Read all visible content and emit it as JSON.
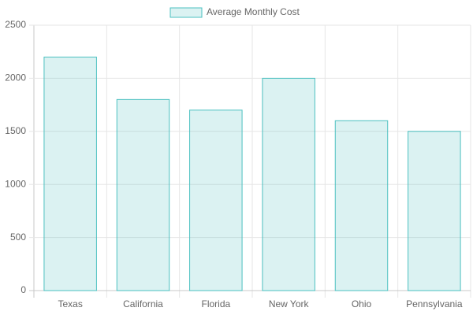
{
  "chart_data": {
    "type": "bar",
    "categories": [
      "Texas",
      "California",
      "Florida",
      "New York",
      "Ohio",
      "Pennsylvania"
    ],
    "series": [
      {
        "name": "Average Monthly Cost",
        "color": "#4bc0c0",
        "values": [
          2200,
          1800,
          1700,
          2000,
          1600,
          1500
        ]
      }
    ],
    "ylim": [
      0,
      2500
    ],
    "yticks": [
      0,
      500,
      1000,
      1500,
      2000,
      2500
    ],
    "grid": true,
    "legend": "top"
  }
}
